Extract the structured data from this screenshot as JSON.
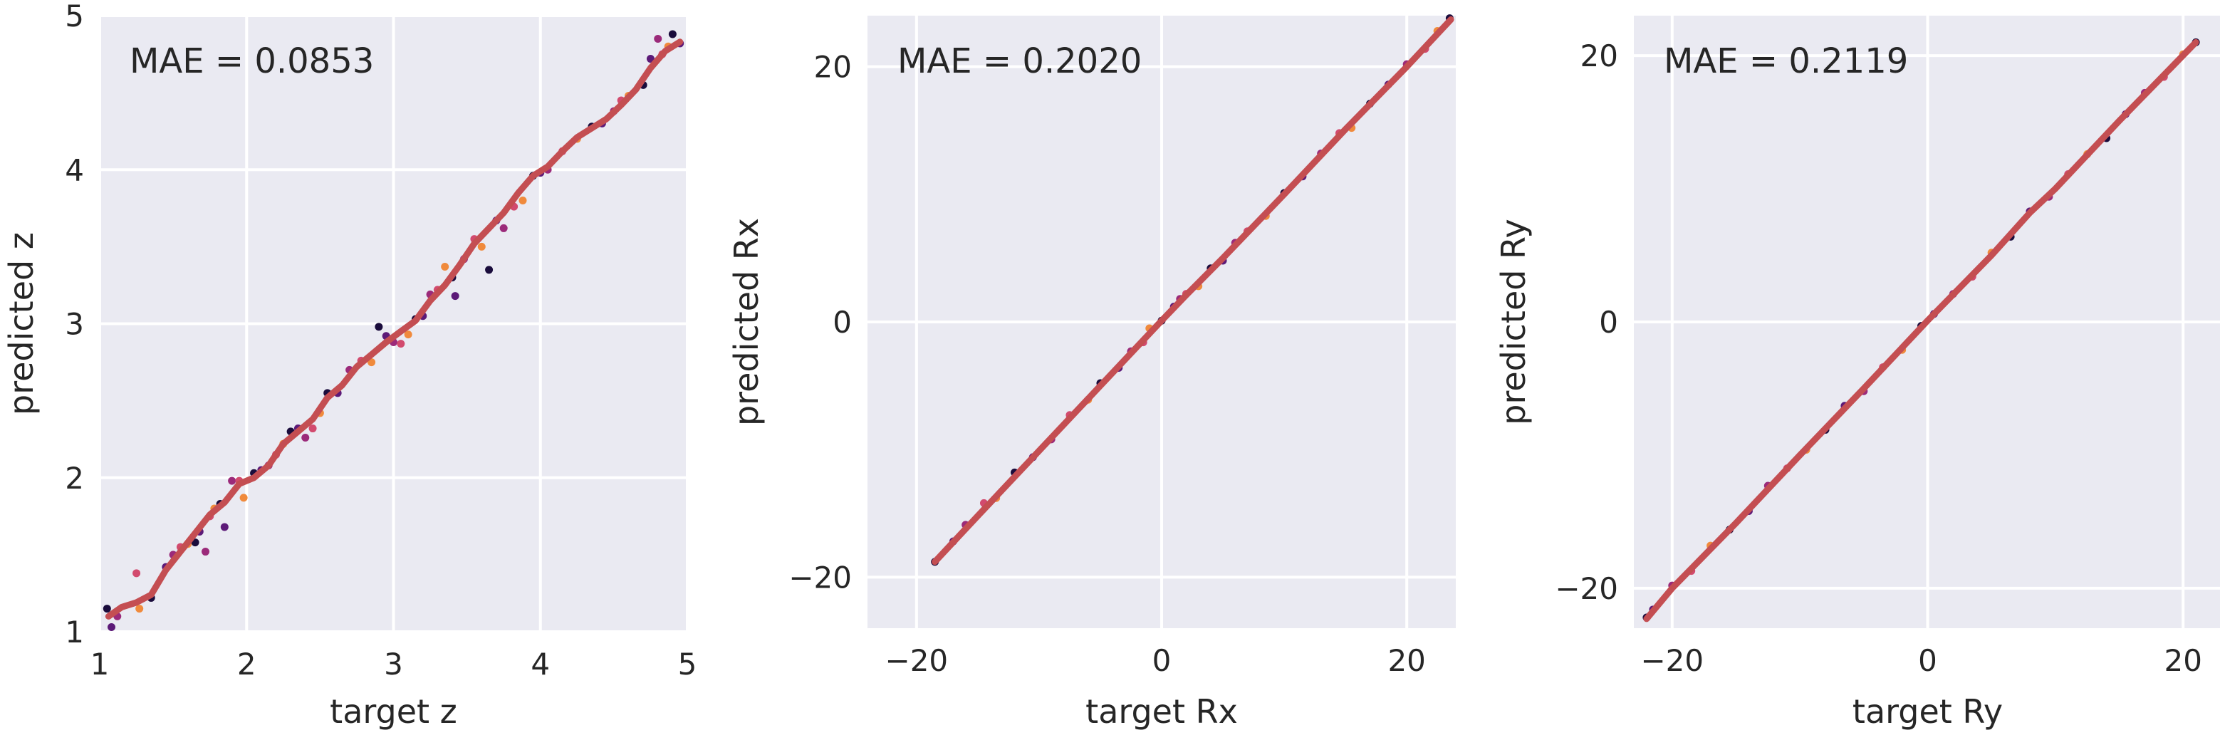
{
  "chart_data": [
    {
      "type": "scatter",
      "xlabel": "target z",
      "ylabel": "predicted z",
      "xlim": [
        1,
        5
      ],
      "ylim": [
        1,
        5
      ],
      "xticks": [
        1,
        2,
        3,
        4,
        5
      ],
      "yticks": [
        1,
        2,
        3,
        4,
        5
      ],
      "annotation": "MAE = 0.0853",
      "grid": true,
      "point_colors": [
        "#1a0c3c",
        "#5c1a78",
        "#9b2a7a",
        "#d24a6e",
        "#f08a3c"
      ],
      "line_color": "#c44e52",
      "points": [
        [
          1.05,
          1.15
        ],
        [
          1.08,
          1.03
        ],
        [
          1.12,
          1.1
        ],
        [
          1.25,
          1.38
        ],
        [
          1.27,
          1.15
        ],
        [
          1.35,
          1.22
        ],
        [
          1.45,
          1.42
        ],
        [
          1.5,
          1.5
        ],
        [
          1.55,
          1.55
        ],
        [
          1.6,
          1.57
        ],
        [
          1.65,
          1.58
        ],
        [
          1.68,
          1.65
        ],
        [
          1.72,
          1.52
        ],
        [
          1.75,
          1.75
        ],
        [
          1.78,
          1.8
        ],
        [
          1.82,
          1.83
        ],
        [
          1.85,
          1.68
        ],
        [
          1.9,
          1.98
        ],
        [
          1.95,
          1.98
        ],
        [
          1.98,
          1.87
        ],
        [
          2.05,
          2.03
        ],
        [
          2.1,
          2.05
        ],
        [
          2.15,
          2.08
        ],
        [
          2.2,
          2.15
        ],
        [
          2.25,
          2.22
        ],
        [
          2.3,
          2.3
        ],
        [
          2.35,
          2.32
        ],
        [
          2.4,
          2.26
        ],
        [
          2.45,
          2.32
        ],
        [
          2.5,
          2.42
        ],
        [
          2.55,
          2.55
        ],
        [
          2.62,
          2.55
        ],
        [
          2.7,
          2.7
        ],
        [
          2.78,
          2.76
        ],
        [
          2.85,
          2.75
        ],
        [
          2.9,
          2.98
        ],
        [
          2.95,
          2.92
        ],
        [
          3.0,
          2.88
        ],
        [
          3.05,
          2.87
        ],
        [
          3.1,
          2.93
        ],
        [
          3.15,
          3.03
        ],
        [
          3.2,
          3.05
        ],
        [
          3.25,
          3.19
        ],
        [
          3.3,
          3.22
        ],
        [
          3.35,
          3.37
        ],
        [
          3.4,
          3.3
        ],
        [
          3.42,
          3.18
        ],
        [
          3.48,
          3.42
        ],
        [
          3.55,
          3.55
        ],
        [
          3.6,
          3.5
        ],
        [
          3.65,
          3.35
        ],
        [
          3.7,
          3.67
        ],
        [
          3.75,
          3.62
        ],
        [
          3.82,
          3.76
        ],
        [
          3.88,
          3.8
        ],
        [
          3.95,
          3.96
        ],
        [
          4.0,
          3.98
        ],
        [
          4.05,
          4.0
        ],
        [
          4.15,
          4.12
        ],
        [
          4.25,
          4.2
        ],
        [
          4.35,
          4.28
        ],
        [
          4.42,
          4.3
        ],
        [
          4.5,
          4.38
        ],
        [
          4.55,
          4.45
        ],
        [
          4.6,
          4.48
        ],
        [
          4.7,
          4.55
        ],
        [
          4.75,
          4.72
        ],
        [
          4.8,
          4.85
        ],
        [
          4.83,
          4.75
        ],
        [
          4.87,
          4.8
        ],
        [
          4.9,
          4.88
        ],
        [
          4.95,
          4.82
        ]
      ],
      "trend": [
        [
          1.06,
          1.1
        ],
        [
          1.15,
          1.16
        ],
        [
          1.25,
          1.19
        ],
        [
          1.35,
          1.24
        ],
        [
          1.45,
          1.4
        ],
        [
          1.55,
          1.52
        ],
        [
          1.65,
          1.64
        ],
        [
          1.75,
          1.76
        ],
        [
          1.85,
          1.84
        ],
        [
          1.95,
          1.96
        ],
        [
          2.05,
          2.0
        ],
        [
          2.15,
          2.08
        ],
        [
          2.25,
          2.22
        ],
        [
          2.35,
          2.3
        ],
        [
          2.45,
          2.38
        ],
        [
          2.55,
          2.52
        ],
        [
          2.65,
          2.6
        ],
        [
          2.75,
          2.72
        ],
        [
          2.85,
          2.8
        ],
        [
          2.95,
          2.88
        ],
        [
          3.05,
          2.95
        ],
        [
          3.15,
          3.02
        ],
        [
          3.25,
          3.15
        ],
        [
          3.35,
          3.25
        ],
        [
          3.45,
          3.38
        ],
        [
          3.55,
          3.52
        ],
        [
          3.65,
          3.62
        ],
        [
          3.75,
          3.72
        ],
        [
          3.85,
          3.85
        ],
        [
          3.95,
          3.96
        ],
        [
          4.05,
          4.02
        ],
        [
          4.15,
          4.12
        ],
        [
          4.25,
          4.21
        ],
        [
          4.35,
          4.27
        ],
        [
          4.45,
          4.33
        ],
        [
          4.55,
          4.42
        ],
        [
          4.65,
          4.52
        ],
        [
          4.75,
          4.66
        ],
        [
          4.85,
          4.77
        ],
        [
          4.95,
          4.83
        ]
      ]
    },
    {
      "type": "scatter",
      "xlabel": "target Rx",
      "ylabel": "predicted Rx",
      "xlim": [
        -24,
        24
      ],
      "ylim": [
        -24,
        24
      ],
      "xticks": [
        -20,
        0,
        20
      ],
      "yticks": [
        -20,
        0,
        20
      ],
      "annotation": "MAE = 0.2020",
      "grid": true,
      "point_colors": [
        "#1a0c3c",
        "#5c1a78",
        "#9b2a7a",
        "#d24a6e",
        "#f08a3c"
      ],
      "line_color": "#c44e52",
      "points": [
        [
          -18.5,
          -18.8
        ],
        [
          -17.0,
          -17.2
        ],
        [
          -16.0,
          -15.9
        ],
        [
          -14.5,
          -14.2
        ],
        [
          -13.5,
          -13.8
        ],
        [
          -12.0,
          -11.8
        ],
        [
          -10.5,
          -10.6
        ],
        [
          -9.0,
          -9.2
        ],
        [
          -7.5,
          -7.3
        ],
        [
          -6.0,
          -6.1
        ],
        [
          -5.0,
          -4.8
        ],
        [
          -3.5,
          -3.6
        ],
        [
          -2.5,
          -2.3
        ],
        [
          -1.5,
          -1.6
        ],
        [
          -1.0,
          -0.5
        ],
        [
          0.0,
          0.1
        ],
        [
          1.0,
          1.2
        ],
        [
          1.5,
          1.8
        ],
        [
          2.0,
          2.2
        ],
        [
          3.0,
          2.8
        ],
        [
          4.0,
          4.2
        ],
        [
          5.0,
          4.8
        ],
        [
          6.0,
          6.2
        ],
        [
          7.0,
          7.1
        ],
        [
          8.5,
          8.3
        ],
        [
          10.0,
          10.1
        ],
        [
          11.5,
          11.4
        ],
        [
          13.0,
          13.2
        ],
        [
          14.5,
          14.8
        ],
        [
          15.5,
          15.2
        ],
        [
          17.0,
          17.1
        ],
        [
          18.5,
          18.6
        ],
        [
          20.0,
          20.2
        ],
        [
          21.5,
          21.4
        ],
        [
          22.5,
          22.8
        ],
        [
          23.5,
          23.8
        ]
      ],
      "trend": [
        [
          -18.5,
          -18.8
        ],
        [
          -15.0,
          -15.2
        ],
        [
          -10.0,
          -10.1
        ],
        [
          -5.0,
          -5.0
        ],
        [
          0.0,
          0.1
        ],
        [
          2.0,
          2.1
        ],
        [
          5.0,
          5.0
        ],
        [
          10.0,
          10.0
        ],
        [
          15.0,
          15.1
        ],
        [
          20.0,
          20.0
        ],
        [
          23.6,
          23.7
        ]
      ]
    },
    {
      "type": "scatter",
      "xlabel": "target Ry",
      "ylabel": "predicted Ry",
      "xlim": [
        -23,
        23
      ],
      "ylim": [
        -23,
        23
      ],
      "xticks": [
        -20,
        0,
        20
      ],
      "yticks": [
        -20,
        0,
        20
      ],
      "annotation": "MAE = 0.2119",
      "grid": true,
      "point_colors": [
        "#1a0c3c",
        "#5c1a78",
        "#9b2a7a",
        "#d24a6e",
        "#f08a3c"
      ],
      "line_color": "#c44e52",
      "points": [
        [
          -22.0,
          -22.2
        ],
        [
          -21.5,
          -21.6
        ],
        [
          -20.0,
          -19.8
        ],
        [
          -18.5,
          -18.7
        ],
        [
          -17.0,
          -16.8
        ],
        [
          -15.5,
          -15.6
        ],
        [
          -14.0,
          -14.2
        ],
        [
          -12.5,
          -12.3
        ],
        [
          -11.0,
          -11.0
        ],
        [
          -9.5,
          -9.6
        ],
        [
          -8.0,
          -8.1
        ],
        [
          -6.5,
          -6.3
        ],
        [
          -5.0,
          -5.2
        ],
        [
          -3.5,
          -3.4
        ],
        [
          -2.0,
          -2.1
        ],
        [
          -0.5,
          -0.3
        ],
        [
          0.5,
          0.6
        ],
        [
          2.0,
          2.1
        ],
        [
          3.5,
          3.4
        ],
        [
          5.0,
          5.2
        ],
        [
          6.5,
          6.4
        ],
        [
          8.0,
          8.3
        ],
        [
          9.5,
          9.4
        ],
        [
          11.0,
          11.1
        ],
        [
          12.5,
          12.6
        ],
        [
          14.0,
          13.8
        ],
        [
          15.5,
          15.6
        ],
        [
          17.0,
          17.2
        ],
        [
          18.5,
          18.4
        ],
        [
          20.0,
          20.1
        ],
        [
          21.0,
          21.0
        ]
      ],
      "trend": [
        [
          -22.0,
          -22.3
        ],
        [
          -20.0,
          -20.0
        ],
        [
          -15.0,
          -15.1
        ],
        [
          -10.0,
          -10.0
        ],
        [
          -5.0,
          -5.0
        ],
        [
          0.0,
          0.1
        ],
        [
          5.0,
          5.0
        ],
        [
          8.0,
          8.2
        ],
        [
          10.0,
          10.0
        ],
        [
          15.0,
          15.1
        ],
        [
          21.0,
          21.0
        ]
      ]
    }
  ]
}
